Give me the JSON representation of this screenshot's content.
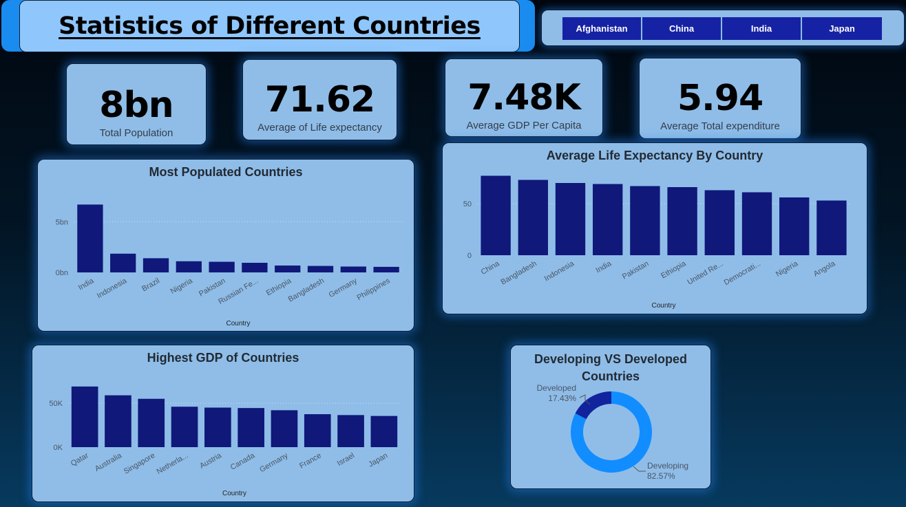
{
  "header": {
    "title": "Statistics of Different Countries"
  },
  "slicer": {
    "items": [
      "Afghanistan",
      "China",
      "India",
      "Japan"
    ]
  },
  "kpis": [
    {
      "value": "8bn",
      "label": "Total Population"
    },
    {
      "value": "71.62",
      "label": "Average of Life expectancy"
    },
    {
      "value": "7.48K",
      "label": "Average GDP Per Capita"
    },
    {
      "value": "5.94",
      "label": "Average Total expenditure"
    }
  ],
  "colors": {
    "bar": "#10187a",
    "developing": "#118dff",
    "developed": "#12239e",
    "card": "#8fbde8"
  },
  "chart_data": [
    {
      "type": "bar",
      "title": "Most Populated Countries",
      "xlabel": "Country",
      "ylabel": "",
      "categories": [
        "India",
        "Indonesia",
        "Brazil",
        "Nigeria",
        "Pakistan",
        "Russian Fe...",
        "Ethiopia",
        "Bangladesh",
        "Germany",
        "Philippines"
      ],
      "values": [
        6.7,
        1.85,
        1.4,
        1.1,
        1.05,
        0.95,
        0.68,
        0.64,
        0.58,
        0.55
      ],
      "unit": "bn",
      "yticks": [
        0,
        5
      ],
      "ytick_labels": [
        "0bn",
        "5bn"
      ],
      "ylim": [
        0,
        7.2
      ],
      "grid": true
    },
    {
      "type": "bar",
      "title": "Average Life Expectancy By Country",
      "xlabel": "Country",
      "ylabel": "",
      "categories": [
        "China",
        "Bangladesh",
        "Indonesia",
        "India",
        "Pakistan",
        "Ethiopia",
        "United Re...",
        "Democrati...",
        "Nigeria",
        "Angola"
      ],
      "values": [
        77,
        73,
        70,
        69,
        67,
        66,
        63,
        61,
        56,
        53
      ],
      "yticks": [
        0,
        50
      ],
      "ytick_labels": [
        "0",
        "50"
      ],
      "ylim": [
        0,
        80
      ],
      "grid": true
    },
    {
      "type": "bar",
      "title": "Highest GDP of Countries",
      "xlabel": "Country",
      "ylabel": "",
      "categories": [
        "Qatar",
        "Australia",
        "Singapore",
        "Netherla...",
        "Austria",
        "Canada",
        "Germany",
        "France",
        "Israel",
        "Japan"
      ],
      "values": [
        69000,
        59000,
        55000,
        46000,
        45000,
        44500,
        42000,
        37500,
        36500,
        35500
      ],
      "yticks": [
        0,
        50000
      ],
      "ytick_labels": [
        "0K",
        "50K"
      ],
      "ylim": [
        0,
        72000
      ],
      "grid": true
    },
    {
      "type": "pie",
      "subtype": "donut",
      "title": "Developing VS Developed Countries",
      "slices": [
        {
          "name": "Developed",
          "value": 17.43,
          "label": "17.43%"
        },
        {
          "name": "Developing",
          "value": 82.57,
          "label": "82.57%"
        }
      ]
    }
  ]
}
